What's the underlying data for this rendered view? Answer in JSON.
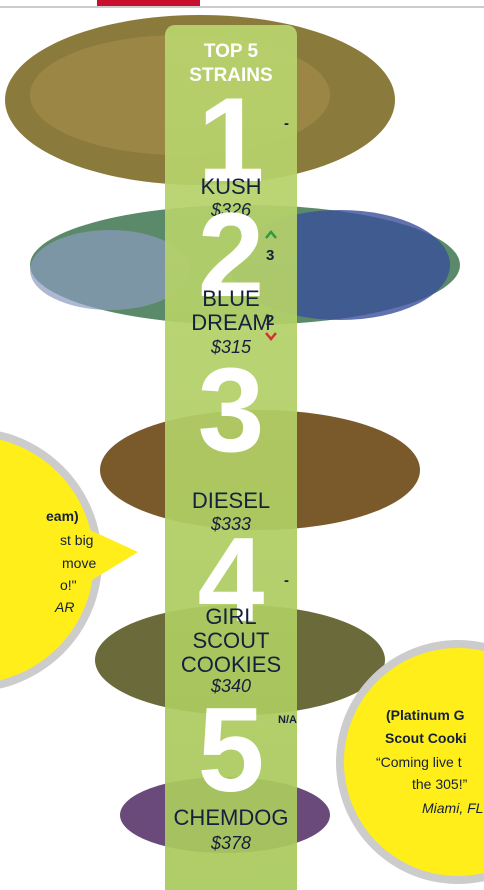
{
  "header": {
    "title": "TOP 5 STRAINS"
  },
  "strains": [
    {
      "rank": "1",
      "change": "-",
      "name": "KUSH",
      "price": "$326"
    },
    {
      "rank": "2",
      "change": "3",
      "name": "BLUE DREAM",
      "price": "$315"
    },
    {
      "rank": "3",
      "change": "2",
      "name": "DIESEL",
      "price": "$333"
    },
    {
      "rank": "4",
      "change": "-",
      "name": "GIRL SCOUT COOKIES",
      "price": "$340"
    },
    {
      "rank": "5",
      "change": "N/A",
      "name": "CHEMDOG",
      "price": "$378"
    }
  ],
  "bubbles": [
    {
      "lines": [
        "eam)",
        "st big",
        "move",
        "o!\"",
        "AR"
      ]
    },
    {
      "lines": [
        "(Platinum G",
        "Scout Cooki",
        "“Coming live t",
        "the 305!”",
        "Miami, FL"
      ]
    }
  ]
}
